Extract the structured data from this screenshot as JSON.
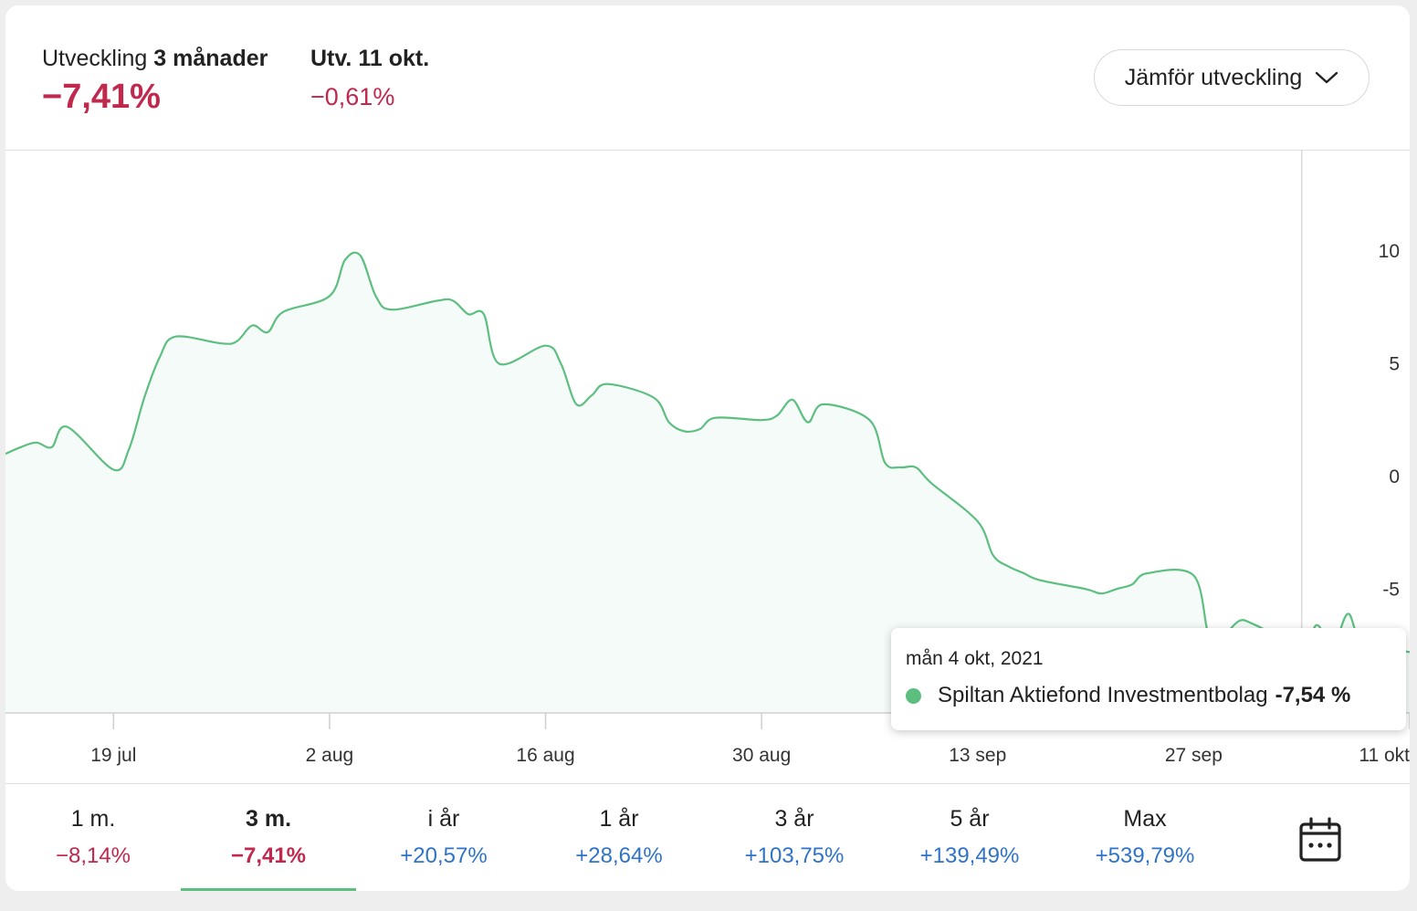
{
  "header": {
    "stat1_label_normal": "Utveckling",
    "stat1_label_bold": "3 månader",
    "stat1_value": "−7,41%",
    "stat2_label": "Utv. 11 okt.",
    "stat2_value": "−0,61%",
    "compare_label": "Jämför utveckling",
    "compare_icon": "chevron-down-icon"
  },
  "tooltip": {
    "date": "mån 4 okt, 2021",
    "series_name": "Spiltan Aktiefond Investmentbolag",
    "value": "-7,54 %"
  },
  "periods": [
    {
      "label": "1 m.",
      "value": "−8,14%",
      "color": "#c0284d",
      "active": false
    },
    {
      "label": "3 m.",
      "value": "−7,41%",
      "color": "#c0284d",
      "active": true
    },
    {
      "label": "i år",
      "value": "+20,57%",
      "color": "#2f73c9",
      "active": false
    },
    {
      "label": "1 år",
      "value": "+28,64%",
      "color": "#2f73c9",
      "active": false
    },
    {
      "label": "3 år",
      "value": "+103,75%",
      "color": "#2f73c9",
      "active": false
    },
    {
      "label": "5 år",
      "value": "+139,49%",
      "color": "#2f73c9",
      "active": false
    },
    {
      "label": "Max",
      "value": "+539,79%",
      "color": "#2f73c9",
      "active": false
    }
  ],
  "calendar_icon": "calendar-icon",
  "colors": {
    "line": "#5cbf80",
    "negative": "#c0284d",
    "positive": "#2f73c9"
  },
  "chart_data": {
    "type": "area",
    "y_ticks": [
      "10",
      "5",
      "0",
      "-5",
      "-10"
    ],
    "y_tick_values": [
      10,
      5,
      0,
      -5,
      -10
    ],
    "ylim": [
      -10.5,
      14.5
    ],
    "x_ticks": [
      "19 jul",
      "2 aug",
      "16 aug",
      "30 aug",
      "13 sep",
      "27 sep",
      "11 okt"
    ],
    "x_tick_dates": [
      "2021-07-19",
      "2021-08-02",
      "2021-08-16",
      "2021-08-30",
      "2021-09-13",
      "2021-09-27",
      "2021-10-11"
    ],
    "xlim": [
      "2021-07-12",
      "2021-10-11"
    ],
    "highlight": {
      "x": "2021-10-04",
      "y": -7.54
    },
    "series": [
      {
        "name": "Spiltan Aktiefond Investmentbolag",
        "points": [
          [
            "2021-07-12",
            1.0
          ],
          [
            "2021-07-13",
            1.3
          ],
          [
            "2021-07-14",
            1.5
          ],
          [
            "2021-07-15",
            1.3
          ],
          [
            "2021-07-16",
            2.2
          ],
          [
            "2021-07-19",
            0.3
          ],
          [
            "2021-07-20",
            1.2
          ],
          [
            "2021-07-21",
            3.5
          ],
          [
            "2021-07-22",
            5.3
          ],
          [
            "2021-07-23",
            6.2
          ],
          [
            "2021-07-26",
            5.9
          ],
          [
            "2021-07-27",
            6.0
          ],
          [
            "2021-07-28",
            6.7
          ],
          [
            "2021-07-29",
            6.4
          ],
          [
            "2021-07-30",
            7.3
          ],
          [
            "2021-08-02",
            8.0
          ],
          [
            "2021-08-03",
            9.6
          ],
          [
            "2021-08-04",
            9.8
          ],
          [
            "2021-08-05",
            8.0
          ],
          [
            "2021-08-06",
            7.4
          ],
          [
            "2021-08-09",
            7.8
          ],
          [
            "2021-08-10",
            7.8
          ],
          [
            "2021-08-11",
            7.2
          ],
          [
            "2021-08-12",
            7.2
          ],
          [
            "2021-08-13",
            5.0
          ],
          [
            "2021-08-16",
            5.8
          ],
          [
            "2021-08-17",
            5.0
          ],
          [
            "2021-08-18",
            3.2
          ],
          [
            "2021-08-19",
            3.6
          ],
          [
            "2021-08-20",
            4.1
          ],
          [
            "2021-08-23",
            3.5
          ],
          [
            "2021-08-24",
            2.4
          ],
          [
            "2021-08-25",
            2.0
          ],
          [
            "2021-08-26",
            2.1
          ],
          [
            "2021-08-27",
            2.6
          ],
          [
            "2021-08-30",
            2.5
          ],
          [
            "2021-08-31",
            2.7
          ],
          [
            "2021-09-01",
            3.4
          ],
          [
            "2021-09-02",
            2.4
          ],
          [
            "2021-09-03",
            3.2
          ],
          [
            "2021-09-06",
            2.5
          ],
          [
            "2021-09-07",
            0.6
          ],
          [
            "2021-09-08",
            0.4
          ],
          [
            "2021-09-09",
            0.4
          ],
          [
            "2021-09-10",
            -0.3
          ],
          [
            "2021-09-13",
            -2.0
          ],
          [
            "2021-09-14",
            -3.5
          ],
          [
            "2021-09-15",
            -4.0
          ],
          [
            "2021-09-16",
            -4.3
          ],
          [
            "2021-09-17",
            -4.6
          ],
          [
            "2021-09-20",
            -5.0
          ],
          [
            "2021-09-21",
            -5.2
          ],
          [
            "2021-09-22",
            -5.0
          ],
          [
            "2021-09-23",
            -4.8
          ],
          [
            "2021-09-24",
            -4.3
          ],
          [
            "2021-09-27",
            -4.4
          ],
          [
            "2021-09-28",
            -7.1
          ],
          [
            "2021-09-29",
            -7.0
          ],
          [
            "2021-09-30",
            -6.4
          ],
          [
            "2021-10-01",
            -6.6
          ],
          [
            "2021-10-04",
            -7.54
          ],
          [
            "2021-10-05",
            -6.6
          ],
          [
            "2021-10-06",
            -7.6
          ],
          [
            "2021-10-07",
            -6.1
          ],
          [
            "2021-10-08",
            -7.4
          ],
          [
            "2021-10-11",
            -7.8
          ]
        ]
      }
    ]
  }
}
